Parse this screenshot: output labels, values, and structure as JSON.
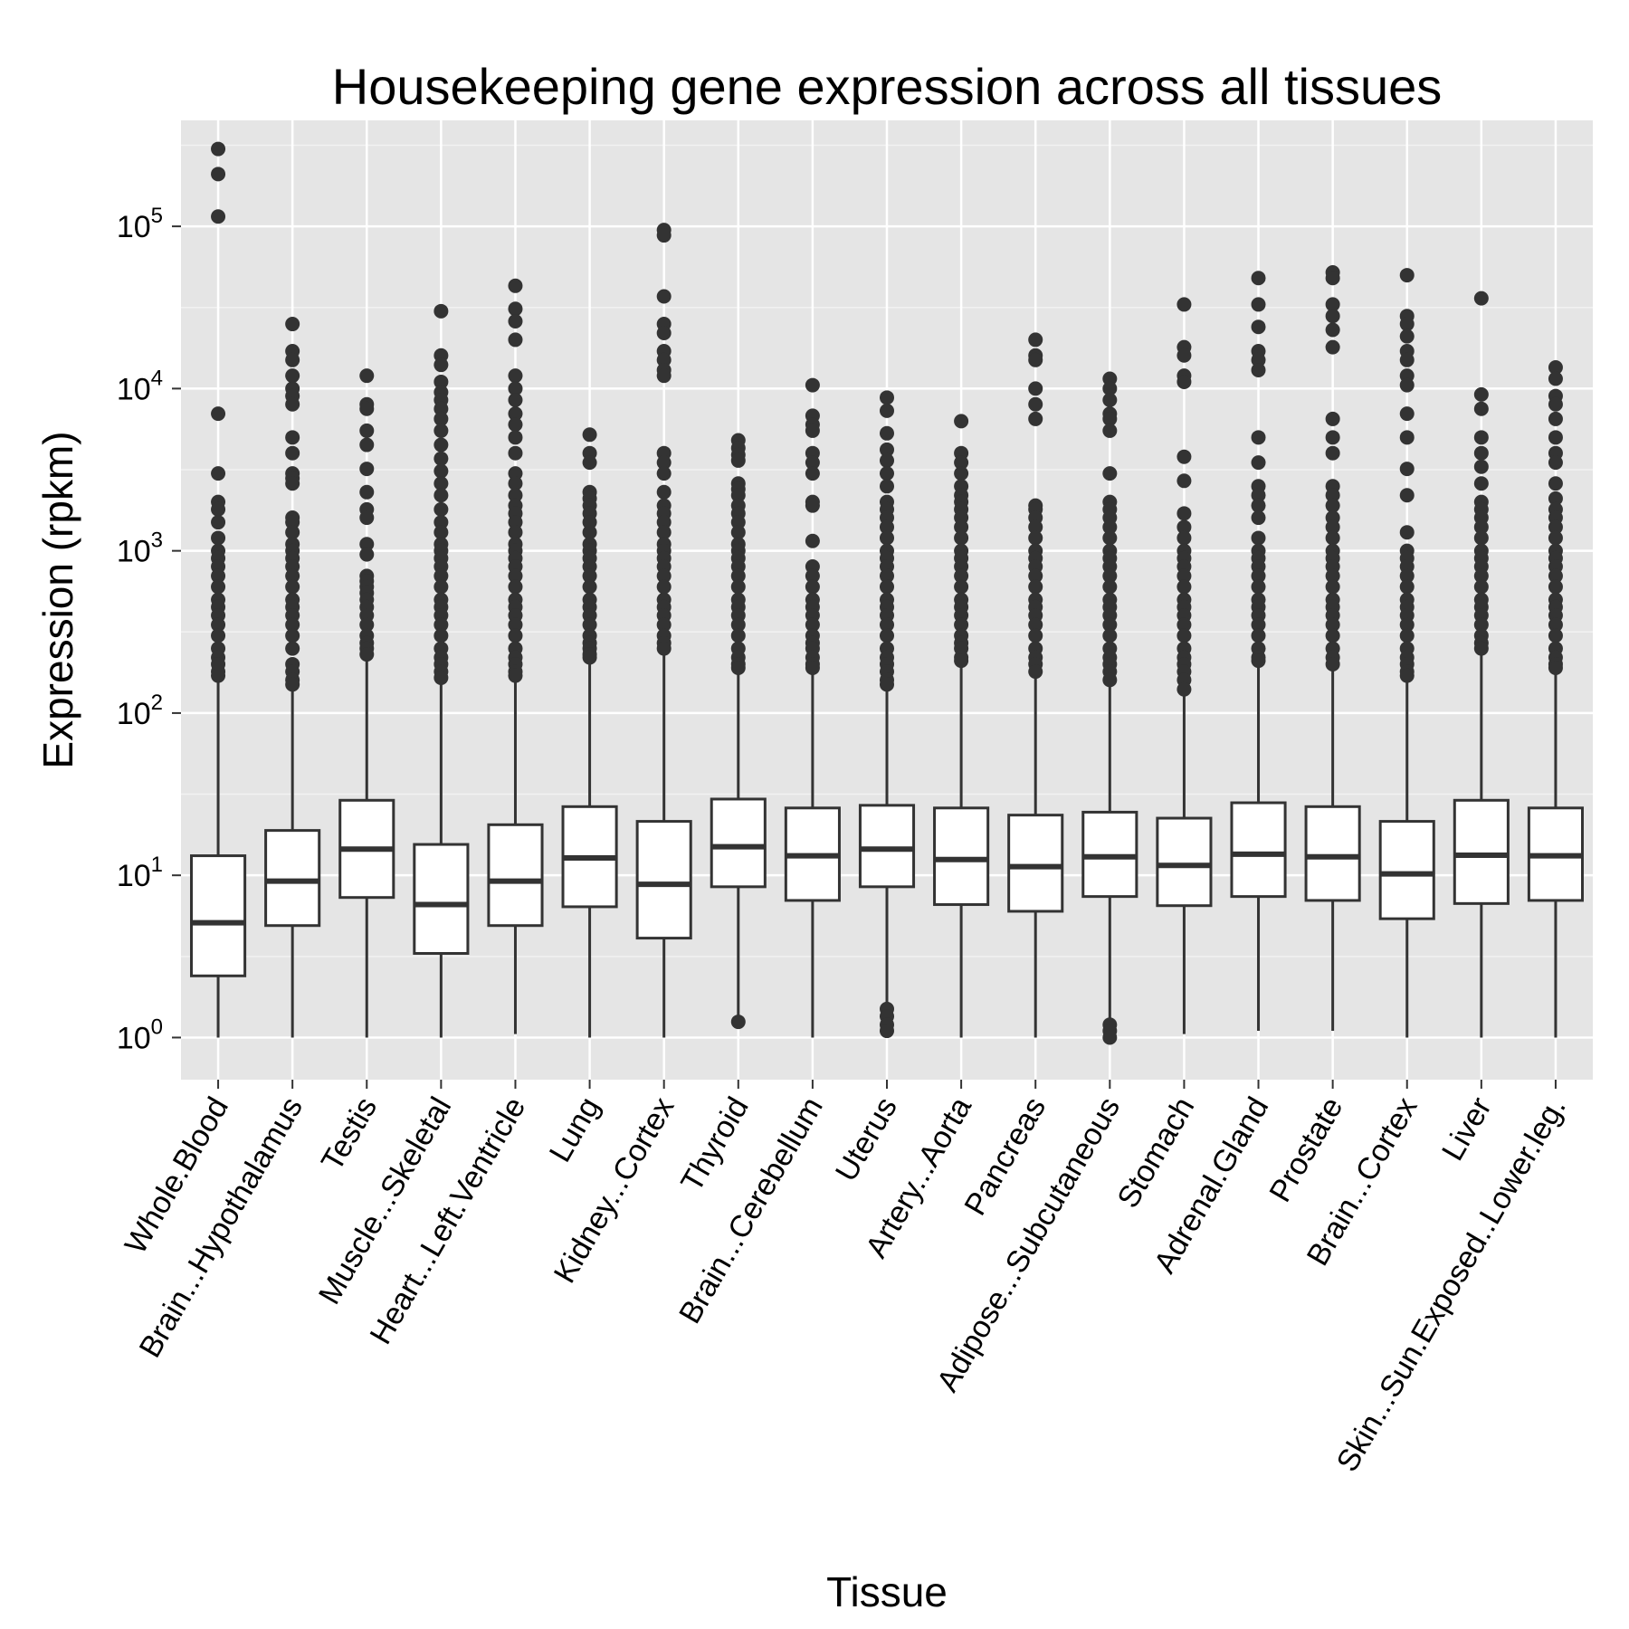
{
  "chart_data": {
    "type": "box",
    "title": "Housekeeping gene expression across all tissues",
    "xlabel": "Tissue",
    "ylabel": "Expression (rpkm)",
    "y_scale": "log10",
    "ylim": [
      0.55,
      450000
    ],
    "y_ticks": [
      {
        "value": 1,
        "base": "10",
        "exp": "0"
      },
      {
        "value": 10,
        "base": "10",
        "exp": "1"
      },
      {
        "value": 100,
        "base": "10",
        "exp": "2"
      },
      {
        "value": 1000,
        "base": "10",
        "exp": "3"
      },
      {
        "value": 10000,
        "base": "10",
        "exp": "4"
      },
      {
        "value": 100000,
        "base": "10",
        "exp": "5"
      }
    ],
    "grid": true,
    "boxes": [
      {
        "category": "Whole.Blood",
        "whisker_low": 1.0,
        "q1": 2.4,
        "median": 5.1,
        "q3": 13.2,
        "whisker_high": 160,
        "outliers": [
          300000,
          210000,
          115000,
          7000,
          3000,
          2000,
          1800,
          1500,
          1200,
          1000,
          900,
          800,
          700,
          600,
          500,
          450,
          400,
          350,
          300,
          250,
          220,
          200,
          180,
          170
        ]
      },
      {
        "category": "Brain...Hypothalamus",
        "whisker_low": 1.0,
        "q1": 4.9,
        "median": 9.2,
        "q3": 18.9,
        "whisker_high": 140,
        "outliers": [
          25000,
          17000,
          15000,
          12000,
          10000,
          9000,
          8000,
          5000,
          4000,
          3000,
          2800,
          2600,
          1600,
          1500,
          1300,
          1100,
          1000,
          900,
          800,
          700,
          600,
          500,
          450,
          400,
          350,
          300,
          250,
          200,
          180,
          160,
          150
        ]
      },
      {
        "category": "Testis",
        "whisker_low": 1.0,
        "q1": 7.3,
        "median": 14.5,
        "q3": 29.0,
        "whisker_high": 220,
        "outliers": [
          12000,
          8000,
          7500,
          5500,
          4500,
          3200,
          2300,
          1800,
          1600,
          1100,
          950,
          700,
          650,
          600,
          550,
          500,
          450,
          400,
          350,
          300,
          270,
          250,
          230
        ]
      },
      {
        "category": "Muscle...Skeletal",
        "whisker_low": 1.0,
        "q1": 3.3,
        "median": 6.6,
        "q3": 15.5,
        "whisker_high": 150,
        "outliers": [
          30000,
          16000,
          14000,
          11000,
          9500,
          8500,
          7500,
          6500,
          5500,
          4500,
          3700,
          3100,
          2600,
          2200,
          1800,
          1500,
          1300,
          1100,
          1000,
          900,
          800,
          700,
          600,
          500,
          450,
          400,
          350,
          300,
          250,
          220,
          200,
          180,
          165
        ]
      },
      {
        "category": "Heart...Left.Ventricle",
        "whisker_low": 1.05,
        "q1": 4.9,
        "median": 9.2,
        "q3": 20.5,
        "whisker_high": 160,
        "outliers": [
          43000,
          31000,
          26000,
          20000,
          12000,
          10000,
          8500,
          7000,
          6000,
          5000,
          4000,
          3000,
          2600,
          2200,
          1900,
          1700,
          1500,
          1300,
          1100,
          1000,
          900,
          800,
          700,
          600,
          500,
          450,
          400,
          350,
          300,
          250,
          220,
          200,
          180,
          170
        ]
      },
      {
        "category": "Lung",
        "whisker_low": 1.0,
        "q1": 6.4,
        "median": 12.8,
        "q3": 26.5,
        "whisker_high": 210,
        "outliers": [
          5200,
          4000,
          3500,
          2300,
          2100,
          1900,
          1700,
          1500,
          1300,
          1100,
          1000,
          900,
          800,
          700,
          600,
          500,
          450,
          400,
          350,
          300,
          270,
          250,
          230,
          220
        ]
      },
      {
        "category": "Kidney...Cortex",
        "whisker_low": 1.0,
        "q1": 4.1,
        "median": 8.8,
        "q3": 21.5,
        "whisker_high": 240,
        "outliers": [
          95000,
          88000,
          37000,
          25000,
          22000,
          17000,
          15000,
          13000,
          12000,
          4000,
          3500,
          3000,
          2300,
          1900,
          1700,
          1500,
          1300,
          1100,
          1000,
          900,
          800,
          700,
          600,
          500,
          450,
          400,
          350,
          300,
          270,
          250
        ]
      },
      {
        "category": "Thyroid",
        "whisker_low": 1.25,
        "q1": 8.5,
        "median": 15.0,
        "q3": 29.5,
        "whisker_high": 180,
        "outliers": [
          4800,
          4300,
          3900,
          3600,
          2600,
          2400,
          2200,
          1900,
          1700,
          1500,
          1300,
          1100,
          1000,
          900,
          800,
          700,
          600,
          500,
          450,
          400,
          350,
          300,
          250,
          220,
          200,
          190,
          1.25
        ]
      },
      {
        "category": "Brain...Cerebellum",
        "whisker_low": 1.0,
        "q1": 7.0,
        "median": 13.2,
        "q3": 26.0,
        "whisker_high": 180,
        "outliers": [
          10500,
          6800,
          6000,
          5500,
          4000,
          3500,
          3000,
          2000,
          1900,
          1150,
          800,
          700,
          600,
          500,
          450,
          400,
          350,
          300,
          270,
          250,
          220,
          200,
          190
        ]
      },
      {
        "category": "Uterus",
        "whisker_low": 1.0,
        "q1": 8.5,
        "median": 14.5,
        "q3": 27.0,
        "whisker_high": 140,
        "outliers": [
          8800,
          7300,
          5300,
          4200,
          3600,
          3000,
          2500,
          2000,
          1800,
          1600,
          1400,
          1200,
          1000,
          900,
          800,
          700,
          600,
          500,
          450,
          400,
          350,
          300,
          250,
          220,
          200,
          180,
          160,
          150,
          1.5,
          1.35,
          1.2,
          1.1
        ]
      },
      {
        "category": "Artery...Aorta",
        "whisker_low": 1.0,
        "q1": 6.6,
        "median": 12.5,
        "q3": 26.0,
        "whisker_high": 200,
        "outliers": [
          6300,
          4000,
          3500,
          3000,
          2500,
          2200,
          2000,
          1800,
          1600,
          1400,
          1200,
          1000,
          900,
          800,
          700,
          600,
          500,
          450,
          400,
          350,
          300,
          270,
          250,
          220,
          210
        ]
      },
      {
        "category": "Pancreas",
        "whisker_low": 1.0,
        "q1": 6.0,
        "median": 11.3,
        "q3": 23.5,
        "whisker_high": 170,
        "outliers": [
          20000,
          16000,
          15000,
          10000,
          8000,
          6500,
          1900,
          1800,
          1600,
          1400,
          1200,
          1000,
          900,
          800,
          700,
          600,
          500,
          450,
          400,
          350,
          300,
          250,
          220,
          200,
          180
        ]
      },
      {
        "category": "Adipose...Subcutaneous",
        "whisker_low": 1.0,
        "q1": 7.4,
        "median": 13.0,
        "q3": 24.5,
        "whisker_high": 150,
        "outliers": [
          11500,
          10000,
          8500,
          7000,
          6500,
          5500,
          3000,
          2000,
          1800,
          1600,
          1400,
          1200,
          1000,
          900,
          800,
          700,
          600,
          500,
          450,
          400,
          350,
          300,
          250,
          220,
          200,
          180,
          160,
          1.2,
          1.1,
          1.0
        ]
      },
      {
        "category": "Stomach",
        "whisker_low": 1.05,
        "q1": 6.5,
        "median": 11.5,
        "q3": 22.5,
        "whisker_high": 130,
        "outliers": [
          33000,
          18000,
          16000,
          12000,
          11000,
          3800,
          2700,
          1700,
          1400,
          1200,
          1000,
          900,
          800,
          700,
          600,
          500,
          450,
          400,
          350,
          300,
          250,
          220,
          200,
          180,
          160,
          140
        ]
      },
      {
        "category": "Adrenal.Gland",
        "whisker_low": 1.1,
        "q1": 7.4,
        "median": 13.5,
        "q3": 28.0,
        "whisker_high": 200,
        "outliers": [
          48000,
          33000,
          24000,
          17000,
          15000,
          13000,
          5000,
          3500,
          2500,
          2200,
          1900,
          1600,
          1200,
          1000,
          900,
          800,
          700,
          600,
          500,
          450,
          400,
          350,
          300,
          250,
          220,
          210
        ]
      },
      {
        "category": "Prostate",
        "whisker_low": 1.1,
        "q1": 7.0,
        "median": 13.0,
        "q3": 26.5,
        "whisker_high": 190,
        "outliers": [
          52000,
          48000,
          33000,
          28000,
          23000,
          18000,
          6500,
          5000,
          4000,
          2500,
          2200,
          1900,
          1600,
          1400,
          1200,
          1000,
          900,
          800,
          700,
          600,
          500,
          450,
          400,
          350,
          300,
          250,
          220,
          200
        ]
      },
      {
        "category": "Brain...Cortex",
        "whisker_low": 1.0,
        "q1": 5.4,
        "median": 10.2,
        "q3": 21.5,
        "whisker_high": 160,
        "outliers": [
          50000,
          28000,
          25000,
          21000,
          17000,
          15000,
          12000,
          10500,
          7000,
          5000,
          3200,
          2200,
          1300,
          1000,
          900,
          800,
          700,
          600,
          500,
          450,
          400,
          350,
          300,
          250,
          220,
          200,
          180,
          170
        ]
      },
      {
        "category": "Liver",
        "whisker_low": 1.0,
        "q1": 6.7,
        "median": 13.3,
        "q3": 29.0,
        "whisker_high": 240,
        "outliers": [
          36000,
          9200,
          7500,
          5000,
          4000,
          3300,
          2600,
          2000,
          1800,
          1600,
          1400,
          1200,
          1000,
          900,
          800,
          700,
          600,
          500,
          450,
          400,
          350,
          300,
          270,
          250
        ]
      },
      {
        "category": "Skin...Sun.Exposed..Lower.leg.",
        "whisker_low": 1.0,
        "q1": 7.0,
        "median": 13.2,
        "q3": 26.0,
        "whisker_high": 180,
        "outliers": [
          13500,
          11500,
          9000,
          8000,
          6500,
          5000,
          4000,
          3500,
          2600,
          2100,
          1800,
          1600,
          1400,
          1200,
          1000,
          900,
          800,
          700,
          600,
          500,
          450,
          400,
          350,
          300,
          250,
          220,
          200,
          190
        ]
      }
    ]
  }
}
